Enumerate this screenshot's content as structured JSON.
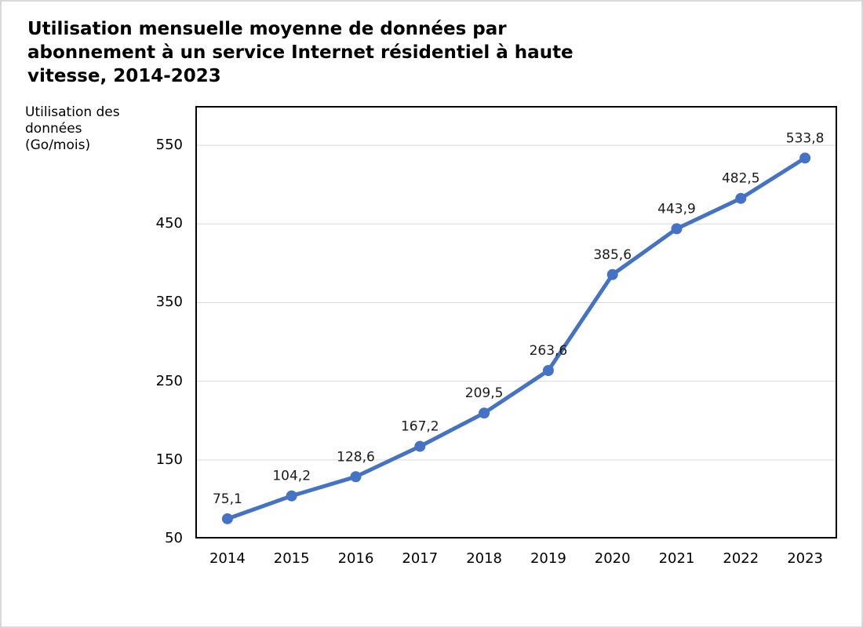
{
  "title": {
    "text": "Utilisation mensuelle moyenne de données par abonnement à un service Internet résidentiel à haute vitesse, 2014-2023",
    "lines": [
      "Utilisation mensuelle moyenne de données par",
      "abonnement à un service Internet résidentiel à haute",
      "vitesse, 2014-2023"
    ]
  },
  "y_axis_title": {
    "text": "Utilisation des données (Go/mois)",
    "lines": [
      "Utilisation des",
      "données",
      "(Go/mois)"
    ]
  },
  "chart_data": {
    "type": "line",
    "title": "Utilisation mensuelle moyenne de données par abonnement à un service Internet résidentiel à haute vitesse, 2014-2023",
    "xlabel": "",
    "ylabel": "Utilisation des données (Go/mois)",
    "categories": [
      "2014",
      "2015",
      "2016",
      "2017",
      "2018",
      "2019",
      "2020",
      "2021",
      "2022",
      "2023"
    ],
    "values": [
      75.1,
      104.2,
      128.6,
      167.2,
      209.5,
      263.6,
      385.6,
      443.9,
      482.5,
      533.8
    ],
    "point_labels": [
      "75,1",
      "104,2",
      "128,6",
      "167,2",
      "209,5",
      "263,6",
      "385,6",
      "443,9",
      "482,5",
      "533,8"
    ],
    "ylim": [
      50,
      600
    ],
    "yticks": [
      50,
      150,
      250,
      350,
      450,
      550
    ],
    "grid": "horizontal",
    "legend": "none",
    "marker": "circle",
    "decimal_separator": ","
  },
  "colors": {
    "series": "#4472C4",
    "gridline": "#D9D9D9",
    "plot_border": "#000000",
    "text": "#000000",
    "data_label": "#1A1A1A",
    "frame_border": "#D9D9D9",
    "background": "#FFFFFF"
  }
}
